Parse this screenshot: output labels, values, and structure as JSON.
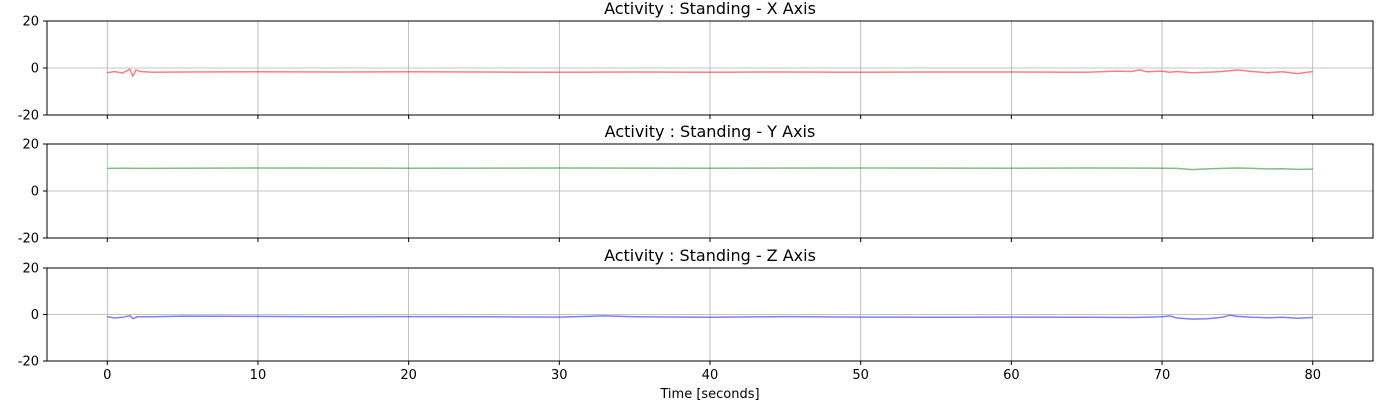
{
  "chart_data": [
    {
      "type": "line",
      "title": "Activity : Standing - X Axis",
      "xlabel": "",
      "ylabel": "",
      "xlim": [
        -4,
        84
      ],
      "ylim": [
        -20,
        20
      ],
      "yticks": [
        20,
        0,
        -20
      ],
      "xticks": [
        0,
        10,
        20,
        30,
        40,
        50,
        60,
        70,
        80
      ],
      "grid": true,
      "series": [
        {
          "name": "X",
          "color": "#ff0000",
          "x": [
            0,
            0.5,
            1,
            1.5,
            1.7,
            1.9,
            2.2,
            3,
            5,
            10,
            15,
            20,
            25,
            30,
            35,
            40,
            45,
            50,
            55,
            60,
            65,
            67,
            68,
            68.5,
            69,
            70,
            70.5,
            71,
            72,
            73,
            74,
            75,
            75.5,
            76,
            77,
            78,
            79,
            80
          ],
          "values": [
            -2,
            -1.5,
            -2.2,
            -0.5,
            -3.5,
            -0.8,
            -1.5,
            -1.8,
            -1.7,
            -1.6,
            -1.7,
            -1.6,
            -1.7,
            -1.8,
            -1.7,
            -1.8,
            -1.7,
            -1.8,
            -1.7,
            -1.7,
            -1.8,
            -1.3,
            -1.5,
            -0.8,
            -1.6,
            -1.3,
            -1.8,
            -1.5,
            -2,
            -1.8,
            -1.5,
            -0.8,
            -1.2,
            -1.5,
            -2,
            -1.6,
            -2.4,
            -1.5
          ]
        }
      ]
    },
    {
      "type": "line",
      "title": "Activity : Standing - Y Axis",
      "xlabel": "",
      "ylabel": "",
      "xlim": [
        -4,
        84
      ],
      "ylim": [
        -20,
        20
      ],
      "yticks": [
        20,
        0,
        -20
      ],
      "xticks": [
        0,
        10,
        20,
        30,
        40,
        50,
        60,
        70,
        80
      ],
      "grid": true,
      "series": [
        {
          "name": "Y",
          "color": "#008000",
          "x": [
            0,
            1,
            2,
            5,
            10,
            20,
            30,
            40,
            50,
            60,
            65,
            70,
            71,
            72,
            73,
            74,
            75,
            76,
            77,
            78,
            79,
            80
          ],
          "values": [
            9.6,
            9.7,
            9.6,
            9.7,
            9.8,
            9.7,
            9.8,
            9.7,
            9.8,
            9.7,
            9.8,
            9.7,
            9.6,
            9.1,
            9.4,
            9.6,
            9.8,
            9.6,
            9.4,
            9.5,
            9.2,
            9.3
          ]
        }
      ]
    },
    {
      "type": "line",
      "title": "Activity : Standing - Z Axis",
      "xlabel": "Time [seconds]",
      "ylabel": "",
      "xlim": [
        -4,
        84
      ],
      "ylim": [
        -20,
        20
      ],
      "yticks": [
        20,
        0,
        -20
      ],
      "xticks": [
        0,
        10,
        20,
        30,
        40,
        50,
        60,
        70,
        80
      ],
      "grid": true,
      "series": [
        {
          "name": "Z",
          "color": "#0000ff",
          "x": [
            0,
            0.5,
            1,
            1.5,
            1.7,
            2,
            3,
            5,
            10,
            15,
            20,
            25,
            30,
            33,
            35,
            40,
            45,
            50,
            55,
            60,
            65,
            68,
            70,
            70.5,
            71,
            72,
            73,
            74,
            74.5,
            75,
            76,
            77,
            78,
            79,
            80
          ],
          "values": [
            -1,
            -1.5,
            -1.2,
            -0.5,
            -1.8,
            -1,
            -1,
            -0.7,
            -0.8,
            -1,
            -0.9,
            -1,
            -1.1,
            -0.6,
            -1,
            -1.2,
            -0.9,
            -1.1,
            -1.2,
            -1.1,
            -1.2,
            -1.3,
            -1,
            -0.6,
            -1.5,
            -2,
            -1.8,
            -1.2,
            -0.3,
            -0.8,
            -1.2,
            -1.4,
            -1.2,
            -1.6,
            -1.3
          ]
        }
      ]
    }
  ]
}
